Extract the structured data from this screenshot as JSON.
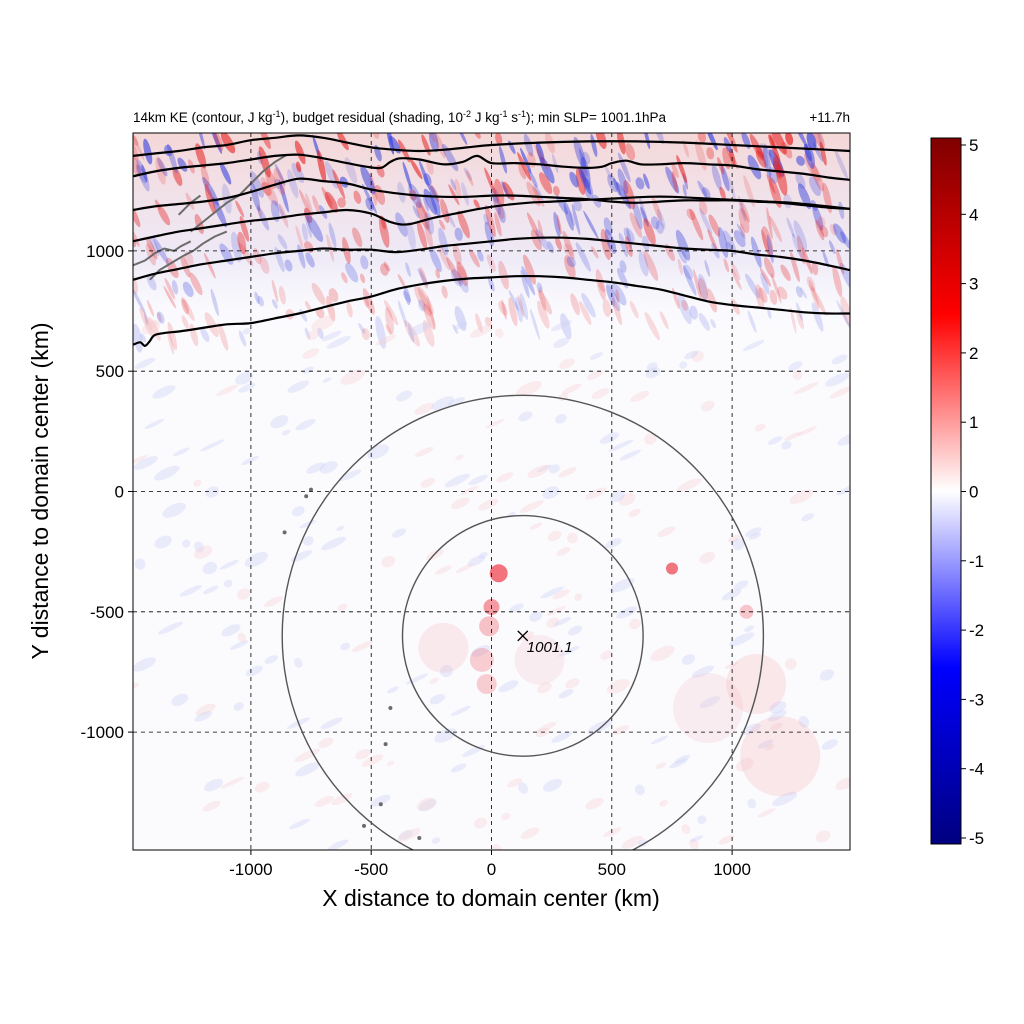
{
  "chart_data": {
    "type": "heatmap",
    "title_parts": {
      "a": "14km KE (contour, J kg",
      "a_sup": "-1",
      "b": "), budget residual (shading, 10",
      "b_sup": "-2",
      "c": " J kg",
      "c_sup": "-1",
      "d": " s",
      "d_sup": "-1",
      "e": "); min SLP= 1001.1hPa"
    },
    "time_label": "+11.7h",
    "xlabel": "X distance to domain center (km)",
    "ylabel": "Y distance to domain center (km)",
    "xlim": [
      -1490,
      1490
    ],
    "ylim": [
      -1490,
      1490
    ],
    "xticks": [
      -1000,
      -500,
      0,
      500,
      1000
    ],
    "yticks": [
      -1000,
      -500,
      0,
      500,
      1000
    ],
    "grid": true,
    "colorbar": {
      "range": [
        -5,
        5
      ],
      "ticks": [
        5,
        4,
        3,
        2,
        1,
        0,
        -1,
        -2,
        -3,
        -4,
        -5
      ],
      "colors": [
        "#00007f",
        "#0000ff",
        "#ffffff",
        "#ff0000",
        "#7f0000"
      ]
    },
    "storm_center": {
      "x": 130,
      "y": -600,
      "label": "1001.1"
    },
    "range_rings_km": [
      500,
      1000
    ],
    "ke_contours": [
      [
        [
          -1490,
          1395
        ],
        [
          -1400,
          1405
        ],
        [
          -1300,
          1415
        ],
        [
          -1200,
          1430
        ],
        [
          -1100,
          1440
        ],
        [
          -1000,
          1460
        ],
        [
          -900,
          1470
        ],
        [
          -800,
          1480
        ],
        [
          -700,
          1470
        ],
        [
          -600,
          1450
        ],
        [
          -500,
          1430
        ],
        [
          -400,
          1420
        ],
        [
          -300,
          1415
        ],
        [
          -200,
          1420
        ],
        [
          -100,
          1430
        ],
        [
          0,
          1440
        ],
        [
          200,
          1450
        ],
        [
          400,
          1455
        ],
        [
          600,
          1455
        ],
        [
          800,
          1450
        ],
        [
          1000,
          1440
        ],
        [
          1200,
          1430
        ],
        [
          1400,
          1420
        ],
        [
          1490,
          1415
        ]
      ],
      [
        [
          -1490,
          1310
        ],
        [
          -1400,
          1330
        ],
        [
          -1300,
          1345
        ],
        [
          -1200,
          1355
        ],
        [
          -1100,
          1365
        ],
        [
          -1000,
          1380
        ],
        [
          -900,
          1395
        ],
        [
          -800,
          1400
        ],
        [
          -700,
          1385
        ],
        [
          -600,
          1365
        ],
        [
          -520,
          1350
        ],
        [
          -460,
          1345
        ],
        [
          -420,
          1370
        ],
        [
          -380,
          1385
        ],
        [
          -300,
          1380
        ],
        [
          -200,
          1360
        ],
        [
          -120,
          1370
        ],
        [
          -60,
          1395
        ],
        [
          0,
          1365
        ],
        [
          100,
          1365
        ],
        [
          200,
          1360
        ],
        [
          300,
          1350
        ],
        [
          400,
          1345
        ],
        [
          460,
          1350
        ],
        [
          500,
          1365
        ],
        [
          560,
          1375
        ],
        [
          620,
          1360
        ],
        [
          700,
          1360
        ],
        [
          800,
          1365
        ],
        [
          900,
          1360
        ],
        [
          1000,
          1355
        ],
        [
          1100,
          1340
        ],
        [
          1200,
          1330
        ],
        [
          1300,
          1320
        ],
        [
          1400,
          1305
        ],
        [
          1490,
          1295
        ]
      ],
      [
        [
          -1490,
          1170
        ],
        [
          -1400,
          1185
        ],
        [
          -1300,
          1195
        ],
        [
          -1200,
          1205
        ],
        [
          -1100,
          1220
        ],
        [
          -1000,
          1245
        ],
        [
          -900,
          1275
        ],
        [
          -800,
          1300
        ],
        [
          -700,
          1290
        ],
        [
          -600,
          1280
        ],
        [
          -500,
          1255
        ],
        [
          -400,
          1240
        ],
        [
          -300,
          1230
        ],
        [
          -200,
          1225
        ],
        [
          -100,
          1225
        ],
        [
          0,
          1230
        ],
        [
          100,
          1230
        ],
        [
          200,
          1225
        ],
        [
          300,
          1220
        ],
        [
          400,
          1215
        ],
        [
          500,
          1205
        ],
        [
          600,
          1200
        ],
        [
          700,
          1205
        ],
        [
          800,
          1210
        ],
        [
          900,
          1210
        ],
        [
          1000,
          1210
        ],
        [
          1100,
          1205
        ],
        [
          1200,
          1200
        ],
        [
          1300,
          1190
        ],
        [
          1400,
          1180
        ],
        [
          1490,
          1175
        ]
      ],
      [
        [
          -1490,
          1040
        ],
        [
          -1400,
          1060
        ],
        [
          -1300,
          1080
        ],
        [
          -1200,
          1095
        ],
        [
          -1100,
          1110
        ],
        [
          -1000,
          1125
        ],
        [
          -900,
          1135
        ],
        [
          -800,
          1150
        ],
        [
          -700,
          1160
        ],
        [
          -600,
          1170
        ],
        [
          -500,
          1155
        ],
        [
          -420,
          1120
        ],
        [
          -350,
          1110
        ],
        [
          -250,
          1135
        ],
        [
          -150,
          1155
        ],
        [
          -50,
          1175
        ],
        [
          50,
          1190
        ],
        [
          150,
          1200
        ],
        [
          250,
          1205
        ],
        [
          350,
          1210
        ],
        [
          450,
          1215
        ],
        [
          550,
          1220
        ],
        [
          650,
          1225
        ],
        [
          750,
          1225
        ],
        [
          850,
          1220
        ],
        [
          950,
          1215
        ],
        [
          1050,
          1210
        ],
        [
          1150,
          1205
        ],
        [
          1250,
          1200
        ],
        [
          1350,
          1190
        ],
        [
          1490,
          1175
        ]
      ],
      [
        [
          -1490,
          880
        ],
        [
          -1400,
          905
        ],
        [
          -1300,
          925
        ],
        [
          -1200,
          945
        ],
        [
          -1100,
          960
        ],
        [
          -1000,
          975
        ],
        [
          -900,
          990
        ],
        [
          -800,
          1000
        ],
        [
          -700,
          1010
        ],
        [
          -600,
          1005
        ],
        [
          -500,
          1005
        ],
        [
          -400,
          995
        ],
        [
          -300,
          1005
        ],
        [
          -200,
          1020
        ],
        [
          -100,
          1030
        ],
        [
          0,
          1040
        ],
        [
          100,
          1050
        ],
        [
          200,
          1055
        ],
        [
          300,
          1055
        ],
        [
          400,
          1050
        ],
        [
          500,
          1040
        ],
        [
          600,
          1030
        ],
        [
          700,
          1020
        ],
        [
          800,
          1010
        ],
        [
          900,
          1005
        ],
        [
          1000,
          1000
        ],
        [
          1100,
          985
        ],
        [
          1200,
          975
        ],
        [
          1300,
          960
        ],
        [
          1400,
          940
        ],
        [
          1490,
          920
        ]
      ],
      [
        [
          -1490,
          610
        ],
        [
          -1460,
          620
        ],
        [
          -1440,
          605
        ],
        [
          -1420,
          625
        ],
        [
          -1400,
          650
        ],
        [
          -1350,
          660
        ],
        [
          -1300,
          665
        ],
        [
          -1200,
          680
        ],
        [
          -1100,
          695
        ],
        [
          -1000,
          700
        ],
        [
          -900,
          720
        ],
        [
          -800,
          740
        ],
        [
          -700,
          765
        ],
        [
          -600,
          790
        ],
        [
          -500,
          810
        ],
        [
          -400,
          840
        ],
        [
          -300,
          860
        ],
        [
          -200,
          875
        ],
        [
          -100,
          885
        ],
        [
          0,
          890
        ],
        [
          100,
          895
        ],
        [
          200,
          895
        ],
        [
          300,
          890
        ],
        [
          400,
          880
        ],
        [
          500,
          870
        ],
        [
          600,
          855
        ],
        [
          700,
          840
        ],
        [
          800,
          815
        ],
        [
          900,
          790
        ],
        [
          1000,
          775
        ],
        [
          1100,
          765
        ],
        [
          1200,
          755
        ],
        [
          1300,
          745
        ],
        [
          1400,
          740
        ],
        [
          1490,
          740
        ]
      ]
    ]
  }
}
